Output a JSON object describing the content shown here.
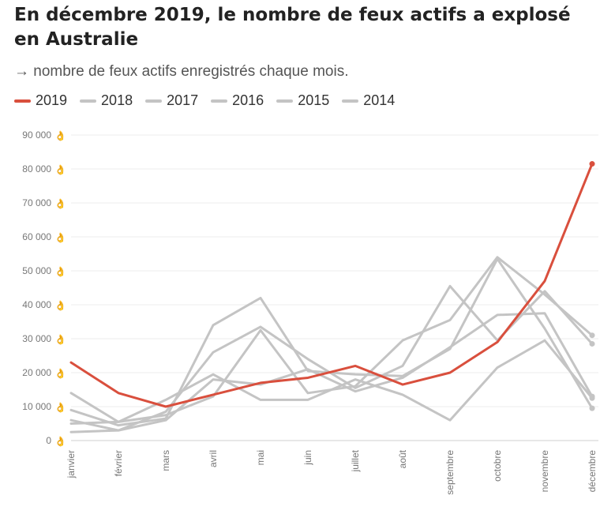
{
  "chart_data": {
    "type": "line",
    "title": "En décembre 2019, le nombre de feux actifs a explosé en Australie",
    "subtitle": "→ nombre de feux actifs enregistrés chaque mois.",
    "categories": [
      "janvier",
      "février",
      "mars",
      "avril",
      "mai",
      "juin",
      "juillet",
      "août",
      "septembre",
      "octobre",
      "novembre",
      "décembre"
    ],
    "ylim": [
      0,
      90000
    ],
    "yticks": [
      {
        "value": 0,
        "label": "0"
      },
      {
        "value": 10000,
        "label": "10 000"
      },
      {
        "value": 20000,
        "label": "20 000"
      },
      {
        "value": 30000,
        "label": "30 000"
      },
      {
        "value": 40000,
        "label": "40 000"
      },
      {
        "value": 50000,
        "label": "50 000"
      },
      {
        "value": 60000,
        "label": "60 000"
      },
      {
        "value": 70000,
        "label": "70 000"
      },
      {
        "value": 80000,
        "label": "80 000"
      },
      {
        "value": 90000,
        "label": "90 000"
      }
    ],
    "tick_icon": "👌",
    "grid": true,
    "legend_position": "top-left",
    "highlight_color": "#d94f3d",
    "muted_color": "#c4c4c4",
    "series": [
      {
        "name": "2018",
        "values": [
          9000,
          4500,
          6500,
          34000,
          42000,
          20500,
          19500,
          19000,
          27000,
          53500,
          33000,
          9500
        ]
      },
      {
        "name": "2017",
        "values": [
          14000,
          5500,
          12000,
          19500,
          12000,
          12000,
          18000,
          13500,
          6000,
          21500,
          29500,
          12500
        ]
      },
      {
        "name": "2016",
        "values": [
          6000,
          3000,
          8500,
          26000,
          33500,
          24000,
          15500,
          22000,
          45500,
          29500,
          44000,
          28500
        ]
      },
      {
        "name": "2015",
        "values": [
          5000,
          5500,
          7500,
          13000,
          32500,
          14000,
          16000,
          29500,
          35500,
          54000,
          43000,
          31000
        ]
      },
      {
        "name": "2014",
        "values": [
          2500,
          3000,
          6000,
          18000,
          16500,
          21000,
          14500,
          18500,
          27500,
          37000,
          37500,
          13000
        ]
      },
      {
        "name": "2019",
        "values": [
          23000,
          14000,
          10000,
          13500,
          17000,
          18500,
          22000,
          16500,
          20000,
          29000,
          47000,
          81500
        ]
      }
    ]
  }
}
